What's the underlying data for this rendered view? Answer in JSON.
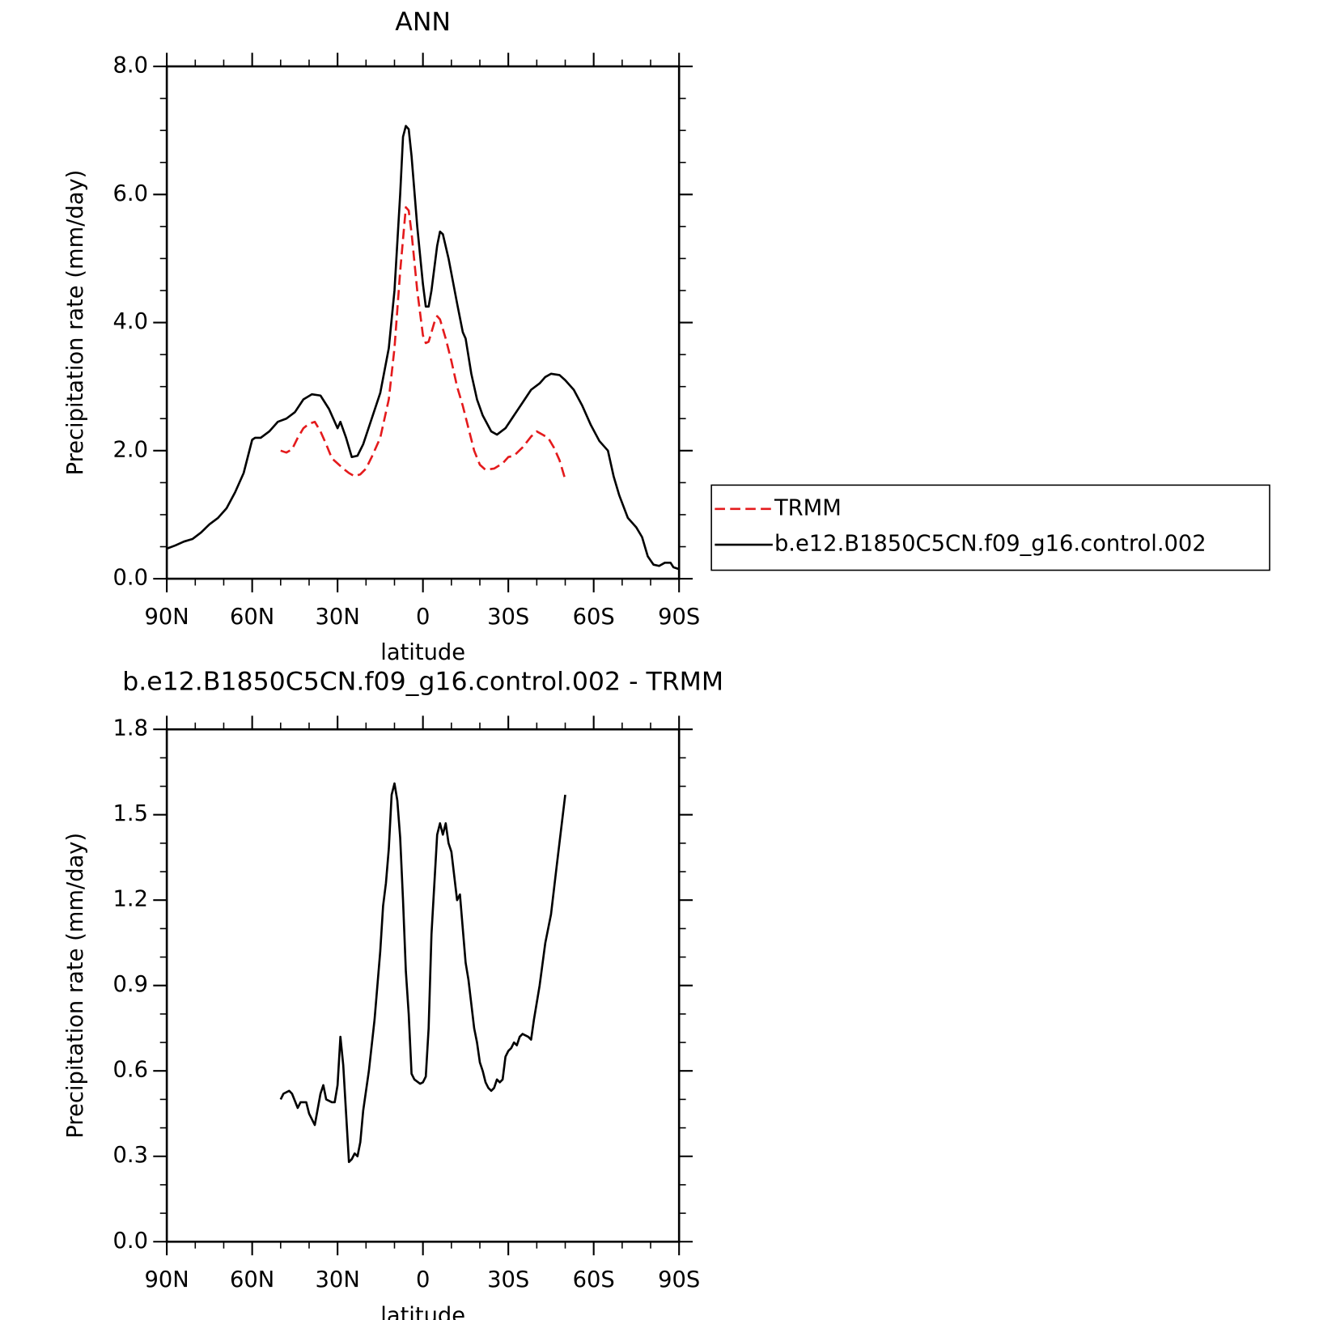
{
  "chart_data": [
    {
      "type": "line",
      "title": "ANN",
      "xlabel": "latitude",
      "ylabel": "Precipitation rate (mm/day)",
      "xlim": [
        90,
        -90
      ],
      "ylim": [
        0,
        8
      ],
      "xticks": [
        {
          "value": 90,
          "label": "90N"
        },
        {
          "value": 60,
          "label": "60N"
        },
        {
          "value": 30,
          "label": "30N"
        },
        0,
        {
          "value": -30,
          "label": "30S"
        },
        {
          "value": -60,
          "label": "60S"
        },
        {
          "value": -90,
          "label": "90S"
        }
      ],
      "yticks": [
        {
          "value": 0,
          "label": "0.0"
        },
        {
          "value": 2,
          "label": "2.0"
        },
        {
          "value": 4,
          "label": "4.0"
        },
        {
          "value": 6,
          "label": "6.0"
        },
        {
          "value": 8,
          "label": "8.0"
        }
      ],
      "xminor": [
        80,
        70,
        50,
        40,
        20,
        10,
        -10,
        -20,
        -40,
        -50,
        -70,
        -80
      ],
      "yminor": [
        0.5,
        1,
        1.5,
        2.5,
        3,
        3.5,
        4.5,
        5,
        5.5,
        6.5,
        7,
        7.5
      ],
      "legend": "right",
      "series": [
        {
          "name": "TRMM",
          "color": "#e41a1c",
          "dashed": true,
          "x": [
            50,
            48,
            46,
            44,
            42,
            40,
            38,
            36,
            34,
            32,
            30,
            28,
            26,
            24,
            22,
            20,
            18,
            15,
            12,
            10,
            8,
            6,
            5,
            4,
            2,
            0,
            -1,
            -2,
            -4,
            -5,
            -6,
            -8,
            -10,
            -12,
            -14,
            -16,
            -18,
            -20,
            -22,
            -25,
            -28,
            -30,
            -32,
            -35,
            -38,
            -40,
            -42,
            -44,
            -46,
            -48,
            -50
          ],
          "values": [
            2.0,
            1.97,
            2.02,
            2.2,
            2.35,
            2.42,
            2.45,
            2.3,
            2.1,
            1.88,
            1.8,
            1.72,
            1.65,
            1.6,
            1.63,
            1.72,
            1.9,
            2.2,
            2.8,
            3.6,
            4.8,
            5.8,
            5.75,
            5.4,
            4.5,
            3.8,
            3.68,
            3.7,
            4.0,
            4.1,
            4.05,
            3.75,
            3.4,
            3.0,
            2.7,
            2.35,
            2.0,
            1.78,
            1.7,
            1.72,
            1.8,
            1.9,
            1.92,
            2.05,
            2.22,
            2.3,
            2.25,
            2.2,
            2.05,
            1.85,
            1.55
          ]
        },
        {
          "name": "b.e12.B1850C5CN.f09_g16.control.002",
          "color": "#000000",
          "dashed": false,
          "x": [
            90,
            87,
            84,
            81,
            78,
            75,
            72,
            69,
            66,
            63,
            60,
            59,
            57,
            54,
            51,
            48,
            45,
            42,
            39,
            36,
            33,
            30,
            29,
            27,
            25,
            23,
            21,
            18,
            15,
            12,
            10,
            8,
            7,
            6,
            5,
            4,
            2,
            0,
            -1,
            -2,
            -3,
            -5,
            -6,
            -7,
            -9,
            -12,
            -14,
            -15,
            -17,
            -19,
            -21,
            -24,
            -26,
            -29,
            -32,
            -35,
            -38,
            -41,
            -43,
            -45,
            -48,
            -50,
            -53,
            -56,
            -59,
            -62,
            -65,
            -67,
            -69,
            -72,
            -75,
            -77,
            -79,
            -81,
            -83,
            -85,
            -87,
            -88,
            -90
          ],
          "values": [
            0.47,
            0.52,
            0.58,
            0.62,
            0.72,
            0.85,
            0.95,
            1.1,
            1.35,
            1.65,
            2.17,
            2.2,
            2.2,
            2.3,
            2.45,
            2.5,
            2.6,
            2.8,
            2.88,
            2.86,
            2.65,
            2.35,
            2.45,
            2.2,
            1.9,
            1.92,
            2.1,
            2.5,
            2.9,
            3.6,
            4.5,
            6.0,
            6.9,
            7.07,
            7.02,
            6.6,
            5.5,
            4.6,
            4.25,
            4.25,
            4.5,
            5.2,
            5.42,
            5.38,
            5.0,
            4.3,
            3.85,
            3.75,
            3.2,
            2.8,
            2.55,
            2.3,
            2.25,
            2.35,
            2.55,
            2.75,
            2.95,
            3.05,
            3.15,
            3.2,
            3.18,
            3.1,
            2.95,
            2.7,
            2.4,
            2.15,
            2.0,
            1.6,
            1.3,
            0.95,
            0.8,
            0.65,
            0.35,
            0.22,
            0.2,
            0.25,
            0.25,
            0.18,
            0.15
          ]
        }
      ]
    },
    {
      "type": "line",
      "title": "b.e12.B1850C5CN.f09_g16.control.002 - TRMM",
      "xlabel": "latitude",
      "ylabel": "Precipitation rate (mm/day)",
      "xlim": [
        90,
        -90
      ],
      "ylim": [
        0,
        1.8
      ],
      "xticks": [
        {
          "value": 90,
          "label": "90N"
        },
        {
          "value": 60,
          "label": "60N"
        },
        {
          "value": 30,
          "label": "30N"
        },
        0,
        {
          "value": -30,
          "label": "30S"
        },
        {
          "value": -60,
          "label": "60S"
        },
        {
          "value": -90,
          "label": "90S"
        }
      ],
      "yticks": [
        {
          "value": 0,
          "label": "0.0"
        },
        0.3,
        0.6,
        0.9,
        1.2,
        1.5,
        1.8
      ],
      "xminor": [
        80,
        70,
        50,
        40,
        20,
        10,
        -10,
        -20,
        -40,
        -50,
        -70,
        -80
      ],
      "yminor": [
        0.1,
        0.2,
        0.4,
        0.5,
        0.7,
        0.8,
        1.0,
        1.1,
        1.3,
        1.4,
        1.6,
        1.7
      ],
      "series": [
        {
          "color": "#000000",
          "dashed": false,
          "x": [
            50,
            49,
            47,
            46,
            44,
            43,
            41,
            40,
            38,
            36,
            35,
            34,
            32,
            31,
            30,
            29,
            28,
            27,
            26,
            25,
            24,
            23,
            22,
            21,
            19,
            17,
            15,
            14,
            13,
            12,
            11,
            10,
            9,
            8,
            7,
            6,
            5,
            4,
            3,
            1,
            0,
            -1,
            -2,
            -3,
            -5,
            -6,
            -7,
            -8,
            -9,
            -10,
            -12,
            -13,
            -14,
            -15,
            -16,
            -18,
            -19,
            -20,
            -21,
            -22,
            -23,
            -24,
            -25,
            -26,
            -27,
            -28,
            -29,
            -30,
            -31,
            -32,
            -33,
            -34,
            -35,
            -37,
            -38,
            -39,
            -41,
            -43,
            -45,
            -47,
            -50
          ],
          "values": [
            0.5,
            0.52,
            0.53,
            0.52,
            0.47,
            0.49,
            0.49,
            0.45,
            0.41,
            0.52,
            0.55,
            0.5,
            0.49,
            0.49,
            0.55,
            0.72,
            0.62,
            0.45,
            0.28,
            0.29,
            0.31,
            0.3,
            0.35,
            0.46,
            0.6,
            0.78,
            1.02,
            1.18,
            1.26,
            1.38,
            1.57,
            1.61,
            1.55,
            1.42,
            1.2,
            0.95,
            0.8,
            0.59,
            0.57,
            0.555,
            0.56,
            0.58,
            0.75,
            1.08,
            1.43,
            1.47,
            1.43,
            1.47,
            1.4,
            1.37,
            1.2,
            1.22,
            1.1,
            0.98,
            0.92,
            0.75,
            0.7,
            0.63,
            0.6,
            0.56,
            0.54,
            0.53,
            0.54,
            0.57,
            0.56,
            0.57,
            0.65,
            0.67,
            0.68,
            0.7,
            0.69,
            0.72,
            0.73,
            0.72,
            0.71,
            0.78,
            0.9,
            1.05,
            1.15,
            1.32,
            1.57
          ]
        }
      ]
    }
  ]
}
